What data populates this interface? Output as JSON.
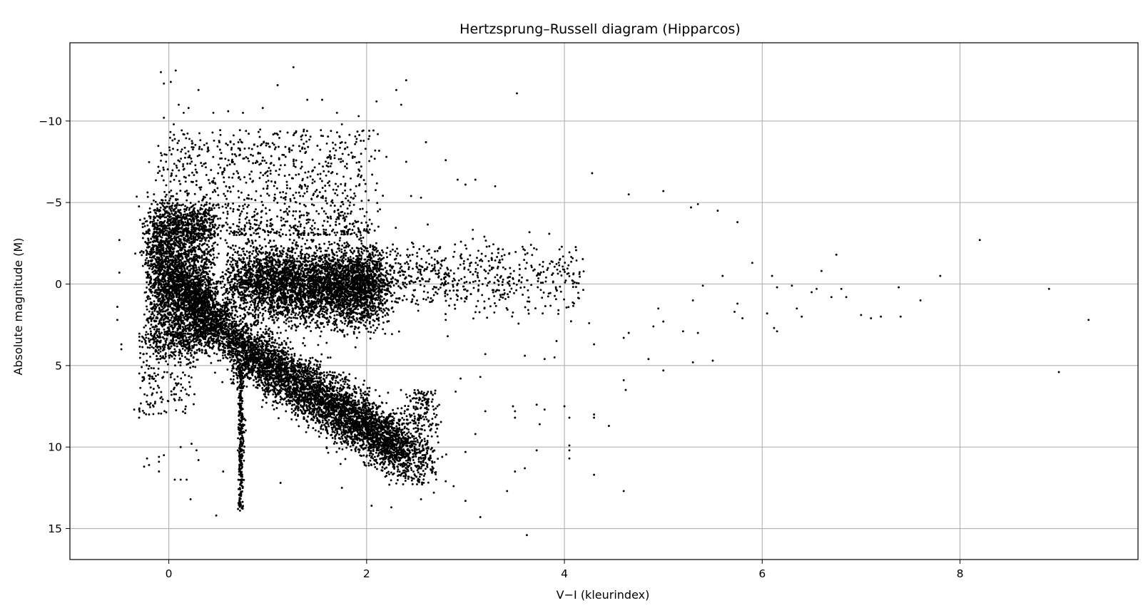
{
  "chart_data": {
    "type": "scatter",
    "title": "Hertzsprung–Russell diagram (Hipparcos)",
    "xlabel": "V−I (kleurindex)",
    "ylabel": "Absolute magnitude (M)",
    "xlim": [
      -1.0,
      9.8
    ],
    "ylim": [
      16.9,
      -14.8
    ],
    "y_inverted": true,
    "grid": true,
    "legend": "none",
    "marker_color": "#000000",
    "x_ticks": [
      0,
      2,
      4,
      6,
      8
    ],
    "x_tick_labels": [
      "0",
      "2",
      "4",
      "6",
      "8"
    ],
    "y_ticks": [
      -10,
      -5,
      0,
      5,
      10,
      15
    ],
    "y_tick_labels": [
      "−10",
      "−5",
      "0",
      "5",
      "10",
      "15"
    ],
    "points": [
      [
        -0.5,
        -2.7
      ],
      [
        -0.5,
        -0.7
      ],
      [
        -0.52,
        1.4
      ],
      [
        -0.52,
        2.2
      ],
      [
        -0.48,
        3.7
      ],
      [
        -0.48,
        4.0
      ],
      [
        -0.35,
        7.7
      ],
      [
        -0.25,
        7.9
      ],
      [
        -0.2,
        8.0
      ],
      [
        -0.3,
        8.2
      ],
      [
        -0.22,
        10.7
      ],
      [
        -0.2,
        11.1
      ],
      [
        -0.25,
        11.2
      ],
      [
        -0.1,
        10.6
      ],
      [
        -0.1,
        10.9
      ],
      [
        -0.1,
        11.5
      ],
      [
        0.06,
        12.0
      ],
      [
        0.12,
        12.0
      ],
      [
        0.18,
        12.0
      ],
      [
        0.22,
        13.2
      ],
      [
        0.48,
        14.2
      ],
      [
        0.7,
        13.8
      ],
      [
        0.72,
        13.9
      ],
      [
        1.13,
        12.2
      ],
      [
        1.75,
        12.5
      ],
      [
        2.25,
        13.7
      ],
      [
        2.05,
        13.6
      ],
      [
        2.55,
        13.2
      ],
      [
        3.0,
        13.3
      ],
      [
        3.15,
        14.3
      ],
      [
        3.62,
        15.4
      ],
      [
        3.42,
        12.7
      ],
      [
        3.5,
        11.5
      ],
      [
        3.6,
        11.3
      ],
      [
        3.72,
        10.2
      ],
      [
        4.05,
        10.2
      ],
      [
        4.05,
        9.9
      ],
      [
        4.05,
        10.7
      ],
      [
        4.3,
        11.7
      ],
      [
        4.6,
        12.7
      ],
      [
        3.48,
        7.5
      ],
      [
        3.5,
        7.8
      ],
      [
        3.5,
        8.2
      ],
      [
        3.72,
        7.4
      ],
      [
        3.8,
        7.7
      ],
      [
        3.75,
        8.6
      ],
      [
        4.0,
        7.5
      ],
      [
        4.05,
        8.2
      ],
      [
        4.3,
        8.0
      ],
      [
        4.3,
        8.2
      ],
      [
        4.45,
        8.7
      ],
      [
        4.6,
        5.9
      ],
      [
        4.62,
        6.5
      ],
      [
        4.85,
        4.6
      ],
      [
        5.0,
        5.3
      ],
      [
        5.5,
        4.7
      ],
      [
        5.3,
        4.8
      ],
      [
        3.52,
        -11.7
      ],
      [
        2.4,
        -12.5
      ],
      [
        2.3,
        -11.9
      ],
      [
        2.35,
        -11.0
      ],
      [
        1.26,
        -13.3
      ],
      [
        0.3,
        -11.9
      ],
      [
        0.07,
        -13.1
      ],
      [
        -0.08,
        -13.0
      ],
      [
        -0.05,
        -12.3
      ],
      [
        0.02,
        -12.4
      ],
      [
        4.28,
        -6.8
      ],
      [
        4.65,
        -5.5
      ],
      [
        5.0,
        -5.7
      ],
      [
        5.35,
        -4.9
      ],
      [
        5.28,
        -4.7
      ],
      [
        5.55,
        -4.5
      ],
      [
        5.75,
        -3.8
      ],
      [
        5.9,
        -1.3
      ],
      [
        6.1,
        -0.5
      ],
      [
        6.15,
        0.2
      ],
      [
        6.3,
        0.1
      ],
      [
        6.35,
        1.5
      ],
      [
        6.4,
        2.0
      ],
      [
        6.5,
        0.5
      ],
      [
        6.7,
        0.8
      ],
      [
        6.75,
        -1.8
      ],
      [
        6.8,
        0.3
      ],
      [
        6.85,
        0.8
      ],
      [
        7.0,
        1.9
      ],
      [
        7.1,
        2.1
      ],
      [
        7.2,
        2.0
      ],
      [
        7.38,
        0.2
      ],
      [
        7.4,
        2.0
      ],
      [
        7.6,
        1.0
      ],
      [
        7.8,
        -0.5
      ],
      [
        8.2,
        -2.7
      ],
      [
        8.9,
        0.3
      ],
      [
        9.0,
        5.4
      ],
      [
        9.3,
        2.2
      ],
      [
        6.6,
        -0.8
      ],
      [
        6.55,
        0.3
      ],
      [
        6.15,
        2.9
      ],
      [
        6.12,
        2.7
      ],
      [
        6.05,
        1.8
      ],
      [
        5.75,
        1.2
      ],
      [
        5.72,
        1.7
      ],
      [
        5.8,
        2.1
      ],
      [
        5.2,
        2.9
      ],
      [
        5.35,
        3.0
      ],
      [
        5.6,
        -0.5
      ],
      [
        5.4,
        0.1
      ],
      [
        5.3,
        1.0
      ],
      [
        5.0,
        2.3
      ],
      [
        4.95,
        1.5
      ],
      [
        4.9,
        2.6
      ],
      [
        4.65,
        3.0
      ],
      [
        4.6,
        3.3
      ],
      [
        4.3,
        3.7
      ],
      [
        4.25,
        2.4
      ],
      [
        3.92,
        3.5
      ],
      [
        3.9,
        4.5
      ],
      [
        3.8,
        4.6
      ],
      [
        3.6,
        4.4
      ],
      [
        3.2,
        4.3
      ],
      [
        2.82,
        3.2
      ],
      [
        2.8,
        2.2
      ],
      [
        2.95,
        5.8
      ],
      [
        2.9,
        6.6
      ],
      [
        3.15,
        5.7
      ],
      [
        3.2,
        7.8
      ],
      [
        3.1,
        9.2
      ],
      [
        3.0,
        10.3
      ],
      [
        2.88,
        12.4
      ],
      [
        2.8,
        12.1
      ],
      [
        2.68,
        12.8
      ],
      [
        0.55,
        11.5
      ],
      [
        0.3,
        10.8
      ],
      [
        0.12,
        10.0
      ],
      [
        -0.05,
        10.5
      ],
      [
        0.23,
        9.8
      ],
      [
        0.28,
        10.2
      ],
      [
        3.3,
        -6.0
      ],
      [
        3.1,
        -6.4
      ],
      [
        2.92,
        -6.4
      ],
      [
        2.8,
        -7.6
      ],
      [
        2.6,
        -8.7
      ],
      [
        2.55,
        -5.3
      ],
      [
        3.0,
        -6.1
      ],
      [
        2.45,
        -5.4
      ],
      [
        1.4,
        -11.3
      ],
      [
        1.55,
        -11.3
      ],
      [
        1.7,
        -10.5
      ],
      [
        1.92,
        -10.3
      ],
      [
        1.75,
        -9.8
      ],
      [
        2.1,
        -11.2
      ],
      [
        2.02,
        -8.9
      ],
      [
        2.2,
        -7.8
      ],
      [
        2.4,
        -7.5
      ],
      [
        1.1,
        -12.2
      ],
      [
        0.95,
        -10.8
      ],
      [
        0.75,
        -10.5
      ],
      [
        0.6,
        -10.6
      ],
      [
        0.45,
        -10.5
      ],
      [
        0.2,
        -10.8
      ],
      [
        -0.05,
        -10.2
      ],
      [
        0.1,
        -11.0
      ],
      [
        0.15,
        -10.5
      ],
      [
        0.05,
        -9.8
      ]
    ]
  }
}
